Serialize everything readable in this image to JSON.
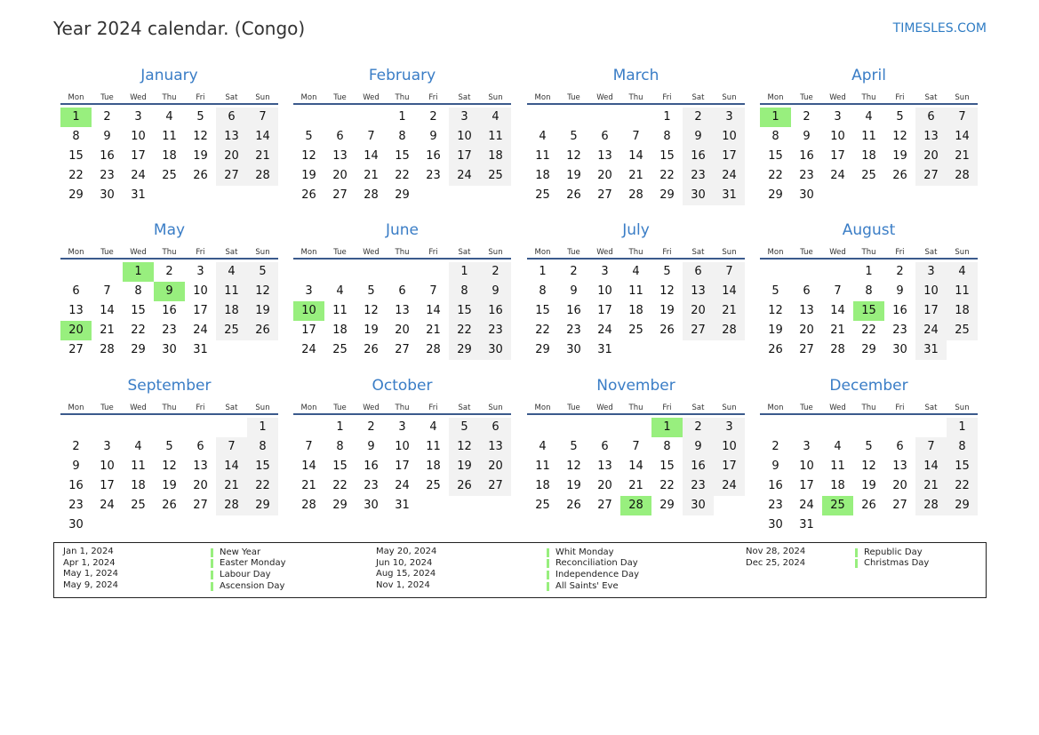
{
  "header": {
    "title": "Year 2024 calendar. (Congo)",
    "site": "TIMESLES.COM"
  },
  "weekdays": [
    "Mon",
    "Tue",
    "Wed",
    "Thu",
    "Fri",
    "Sat",
    "Sun"
  ],
  "colors": {
    "accent": "#3a7dc6",
    "holiday": "#98ef7e",
    "weekend": "#f2f2f2",
    "rule": "#3b5a8c"
  },
  "months": [
    {
      "name": "January",
      "start": 0,
      "days": 31,
      "holidays": [
        1
      ]
    },
    {
      "name": "February",
      "start": 3,
      "days": 29,
      "holidays": []
    },
    {
      "name": "March",
      "start": 4,
      "days": 31,
      "holidays": []
    },
    {
      "name": "April",
      "start": 0,
      "days": 30,
      "holidays": [
        1
      ]
    },
    {
      "name": "May",
      "start": 2,
      "days": 31,
      "holidays": [
        1,
        9,
        20
      ]
    },
    {
      "name": "June",
      "start": 5,
      "days": 30,
      "holidays": [
        10
      ]
    },
    {
      "name": "July",
      "start": 0,
      "days": 31,
      "holidays": []
    },
    {
      "name": "August",
      "start": 3,
      "days": 31,
      "holidays": [
        15
      ]
    },
    {
      "name": "September",
      "start": 6,
      "days": 30,
      "holidays": []
    },
    {
      "name": "October",
      "start": 1,
      "days": 31,
      "holidays": []
    },
    {
      "name": "November",
      "start": 4,
      "days": 30,
      "holidays": [
        1,
        28
      ]
    },
    {
      "name": "December",
      "start": 6,
      "days": 31,
      "holidays": [
        25
      ]
    }
  ],
  "legend": [
    [
      {
        "date": "Jan 1, 2024",
        "name": "New Year"
      },
      {
        "date": "Apr 1, 2024",
        "name": "Easter Monday"
      },
      {
        "date": "May 1, 2024",
        "name": "Labour Day"
      },
      {
        "date": "May 9, 2024",
        "name": "Ascension Day"
      }
    ],
    [
      {
        "date": "May 20, 2024",
        "name": "Whit Monday"
      },
      {
        "date": "Jun 10, 2024",
        "name": "Reconciliation Day"
      },
      {
        "date": "Aug 15, 2024",
        "name": "Independence Day"
      },
      {
        "date": "Nov 1, 2024",
        "name": "All Saints' Eve"
      }
    ],
    [
      {
        "date": "Nov 28, 2024",
        "name": "Republic Day"
      },
      {
        "date": "Dec 25, 2024",
        "name": "Christmas Day"
      }
    ]
  ]
}
